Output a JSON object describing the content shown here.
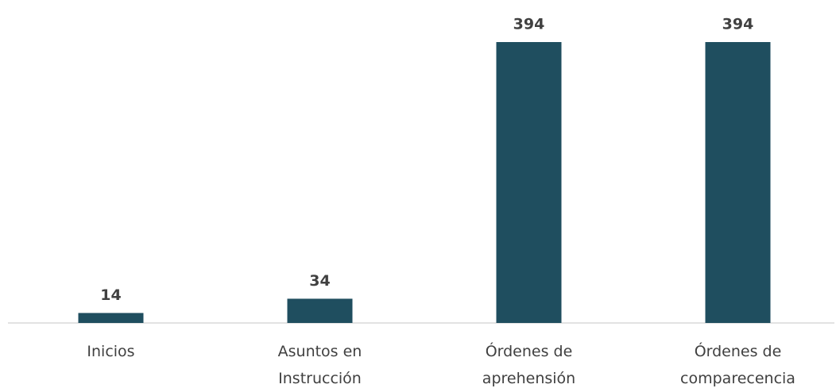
{
  "chart_data": {
    "type": "bar",
    "categories": [
      "Inicios",
      "Asuntos en Instrucción",
      "Órdenes de aprehensión",
      "Órdenes de comparecencia"
    ],
    "values": [
      14,
      34,
      394,
      394
    ],
    "color": "#1f4e5f"
  }
}
